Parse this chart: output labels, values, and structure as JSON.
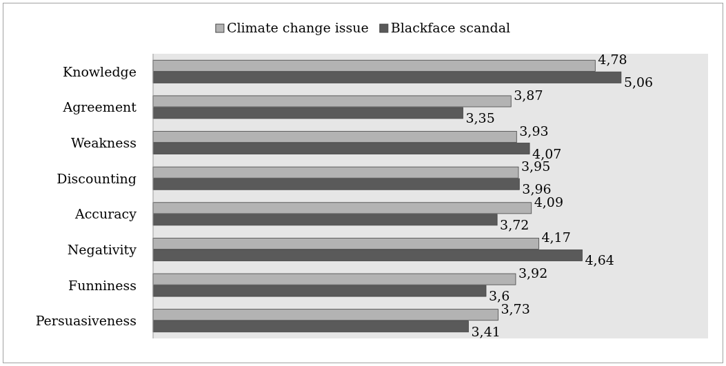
{
  "chart_data": {
    "type": "bar",
    "orientation": "horizontal",
    "categories": [
      "Knowledge",
      "Agreement",
      "Weakness",
      "Discounting",
      "Accuracy",
      "Negativity",
      "Funniness",
      "Persuasiveness"
    ],
    "series": [
      {
        "name": "Climate change issue",
        "color": "#b3b3b3",
        "values": [
          4.78,
          3.87,
          3.93,
          3.95,
          4.09,
          4.17,
          3.92,
          3.73
        ],
        "value_labels": [
          "4,78",
          "3,87",
          "3,93",
          "3,95",
          "4,09",
          "4,17",
          "3,92",
          "3,73"
        ]
      },
      {
        "name": "Blackface scandal",
        "color": "#5a5a5a",
        "values": [
          5.06,
          3.35,
          4.07,
          3.96,
          3.72,
          4.64,
          3.6,
          3.41
        ],
        "value_labels": [
          "5,06",
          "3,35",
          "4,07",
          "3,96",
          "3,72",
          "4,64",
          "3,6",
          "3,41"
        ]
      }
    ],
    "xlim": [
      0,
      6
    ],
    "tick_labels": "y",
    "legend": "top"
  }
}
